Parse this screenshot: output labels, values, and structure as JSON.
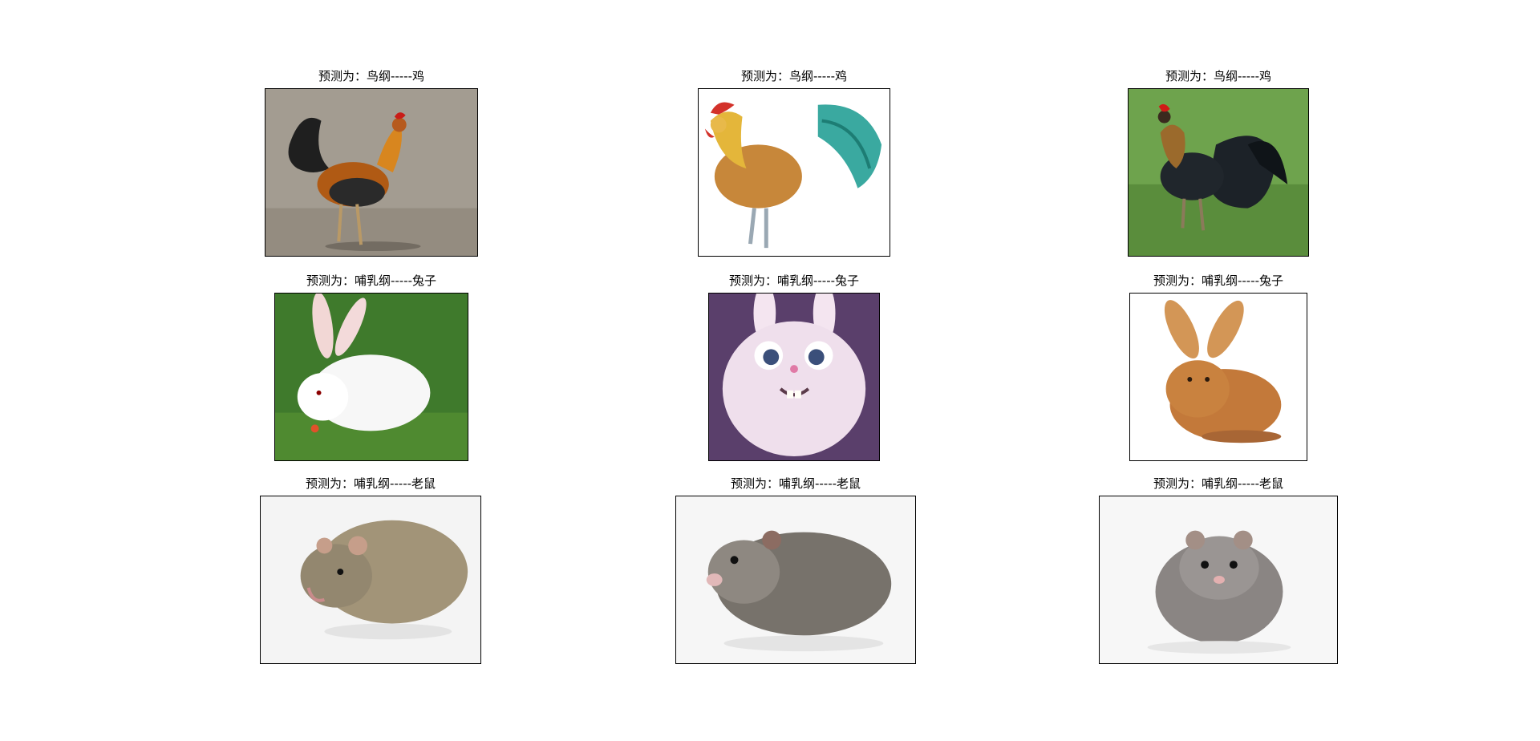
{
  "figure": {
    "rows": [
      {
        "label": "鸡",
        "cells": [
          {
            "title": "预测为：鸟纲-----鸡",
            "image": "rooster-photo-road",
            "bg": "#a39c91"
          },
          {
            "title": "预测为：鸟纲-----鸡",
            "image": "rooster-illustration",
            "bg": "#ffffff"
          },
          {
            "title": "预测为：鸟纲-----鸡",
            "image": "rooster-photo-grass",
            "bg": "#6ea34d"
          }
        ]
      },
      {
        "label": "兔子",
        "cells": [
          {
            "title": "预测为：哺乳纲-----兔子",
            "image": "white-rabbit-photo",
            "bg": "#3f7a2c"
          },
          {
            "title": "预测为：哺乳纲-----兔子",
            "image": "cartoon-rabbit",
            "bg": "#5a3f6b"
          },
          {
            "title": "预测为：哺乳纲-----兔子",
            "image": "brown-rabbit-photo",
            "bg": "#ffffff"
          }
        ]
      },
      {
        "label": "老鼠",
        "cells": [
          {
            "title": "预测为：哺乳纲-----老鼠",
            "image": "rat-photo",
            "bg": "#f4f4f4"
          },
          {
            "title": "预测为：哺乳纲-----老鼠",
            "image": "hamster-side-photo",
            "bg": "#f6f6f6"
          },
          {
            "title": "预测为：哺乳纲-----老鼠",
            "image": "hamster-front-photo",
            "bg": "#f7f7f7"
          }
        ]
      }
    ]
  }
}
